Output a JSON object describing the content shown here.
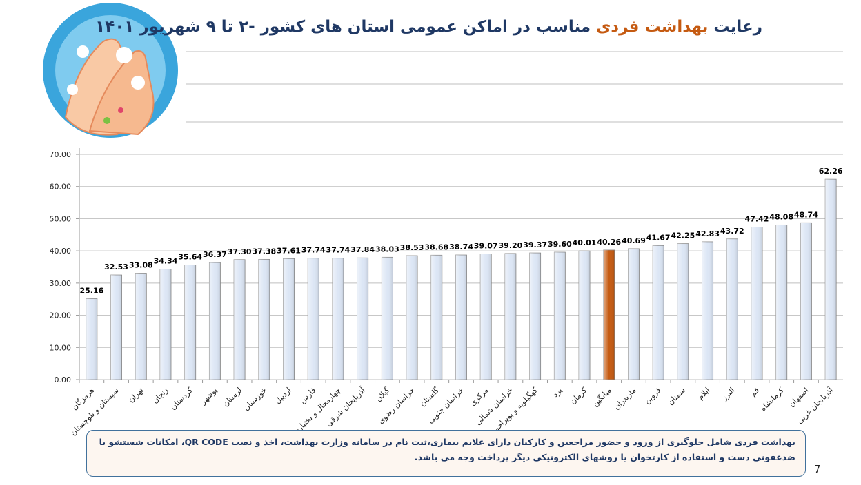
{
  "chart_data": {
    "type": "bar",
    "title_parts": [
      "رعایت ",
      "بهداشت فردی",
      " مناسب در اماکن عمومی استان های کشور -۲ تا ۹ شهریور ۱۴۰۱"
    ],
    "title_colors": [
      "#1f3864",
      "#c55a11",
      "#1f3864"
    ],
    "categories": [
      "هرمزگان",
      "سیستان و بلوچستان",
      "تهران",
      "زنجان",
      "کردستان",
      "بوشهر",
      "لرستان",
      "خوزستان",
      "اردبیل",
      "فارس",
      "چهارمحال و بختیاری",
      "آذربایجان شرقی",
      "گیلان",
      "خراسان رضوی",
      "گلستان",
      "خراسان جنوبی",
      "مرکزی",
      "خراسان شمالی",
      "کهگیلویه و بویراحمد",
      "یزد",
      "کرمان",
      "میانگین",
      "مازندران",
      "قزوین",
      "سمنان",
      "ایلام",
      "البرز",
      "قم",
      "کرمانشاه",
      "اصفهان",
      "آذربایجان غربی"
    ],
    "values": [
      25.16,
      32.53,
      33.08,
      34.34,
      35.64,
      36.37,
      37.3,
      37.38,
      37.61,
      37.74,
      37.74,
      37.84,
      38.03,
      38.53,
      38.68,
      38.74,
      39.07,
      39.2,
      39.37,
      39.6,
      40.01,
      40.26,
      40.69,
      41.67,
      42.25,
      42.83,
      43.72,
      47.42,
      48.08,
      48.74,
      62.26
    ],
    "value_labels": [
      "25.16",
      "32.53",
      "33.08",
      "34.34",
      "35.64",
      "36.37",
      "37.30",
      "37.38",
      "37.61",
      "37.74",
      "37.74",
      "37.84",
      "38.03",
      "38.53",
      "38.68",
      "38.74",
      "39.07",
      "39.20",
      "39.37",
      "39.60",
      "40.01",
      "40.26",
      "40.69",
      "41.67",
      "42.25",
      "42.83",
      "43.72",
      "47.42",
      "48.08",
      "48.74",
      "62.26"
    ],
    "colors": [
      "#dce6f5",
      "#dce6f5",
      "#dce6f5",
      "#dce6f5",
      "#dce6f5",
      "#dce6f5",
      "#dce6f5",
      "#dce6f5",
      "#dce6f5",
      "#dce6f5",
      "#dce6f5",
      "#dce6f5",
      "#dce6f5",
      "#dce6f5",
      "#dce6f5",
      "#dce6f5",
      "#dce6f5",
      "#dce6f5",
      "#dce6f5",
      "#dce6f5",
      "#dce6f5",
      "#c55a11",
      "#dce6f5",
      "#dce6f5",
      "#dce6f5",
      "#dce6f5",
      "#dce6f5",
      "#dce6f5",
      "#dce6f5",
      "#dce6f5",
      "#dce6f5"
    ],
    "ylim": [
      0,
      70
    ],
    "yticks": [
      {
        "value": 0,
        "label": "0.00"
      },
      {
        "value": 10,
        "label": "10.00"
      },
      {
        "value": 20,
        "label": "20.00"
      },
      {
        "value": 30,
        "label": "30.00"
      },
      {
        "value": 40,
        "label": "40.00"
      },
      {
        "value": 50,
        "label": "50.00"
      },
      {
        "value": 60,
        "label": "60.00"
      },
      {
        "value": 70,
        "label": "70.00"
      }
    ],
    "grid": true
  },
  "note": [
    "بهداشت فردی شامل جلوگیری از ورود و حضور مراجعین و کارکنان دارای علایم بیماری،ثبت نام در سامانه وزارت بهداشت، اخذ و نصب  QR CODE، امکانات شستشو یا",
    "ضدعفونی دست و استفاده از کارتخوان یا روشهای الکترونیکی دیگر پرداخت وجه می باشد."
  ],
  "page_number": "7"
}
